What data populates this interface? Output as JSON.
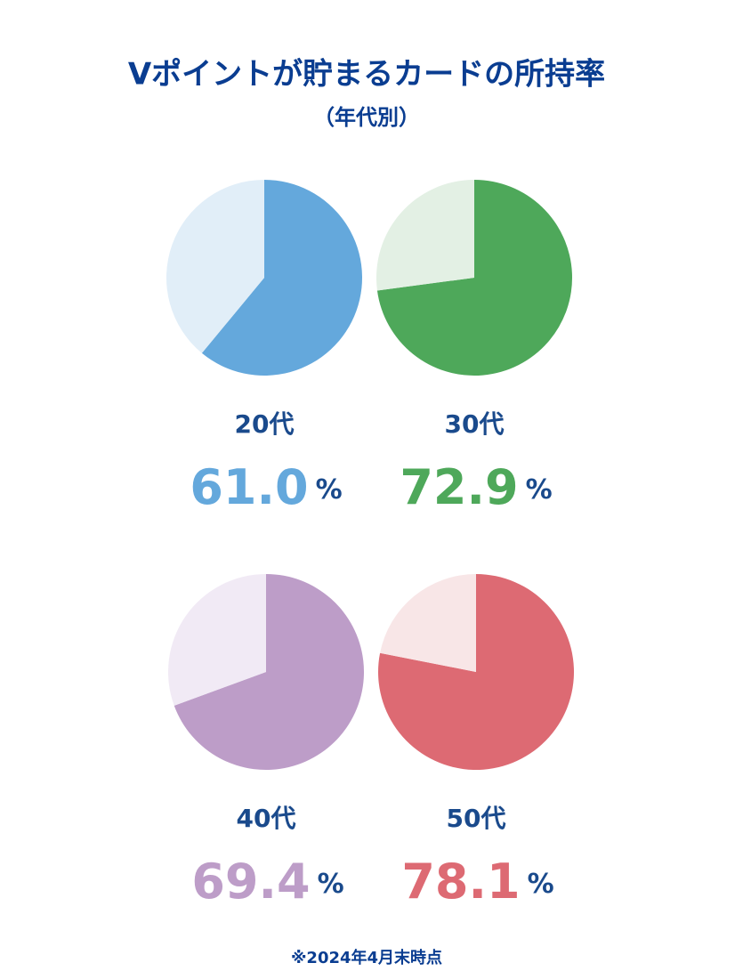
{
  "title": "Vポイントが貯まるカードの所持率",
  "subtitle": "（年代別）",
  "note": "※2024年4月末時点",
  "chart_data": [
    {
      "type": "pie",
      "label": "20代",
      "values": [
        61.0,
        39.0
      ],
      "value_labels": [
        "61.0",
        null
      ],
      "unit": "%",
      "colors": [
        "#64a8dc",
        "#e1eef8"
      ]
    },
    {
      "type": "pie",
      "label": "30代",
      "values": [
        72.9,
        27.1
      ],
      "value_labels": [
        "72.9",
        null
      ],
      "unit": "%",
      "colors": [
        "#4ea85a",
        "#e3f0e4"
      ]
    },
    {
      "type": "pie",
      "label": "40代",
      "values": [
        69.4,
        30.6
      ],
      "value_labels": [
        "69.4",
        null
      ],
      "unit": "%",
      "colors": [
        "#bd9dc8",
        "#f1eaf5"
      ]
    },
    {
      "type": "pie",
      "label": "50代",
      "values": [
        78.1,
        21.9
      ],
      "value_labels": [
        "78.1",
        null
      ],
      "unit": "%",
      "colors": [
        "#dd6a73",
        "#f8e6e7"
      ]
    }
  ]
}
